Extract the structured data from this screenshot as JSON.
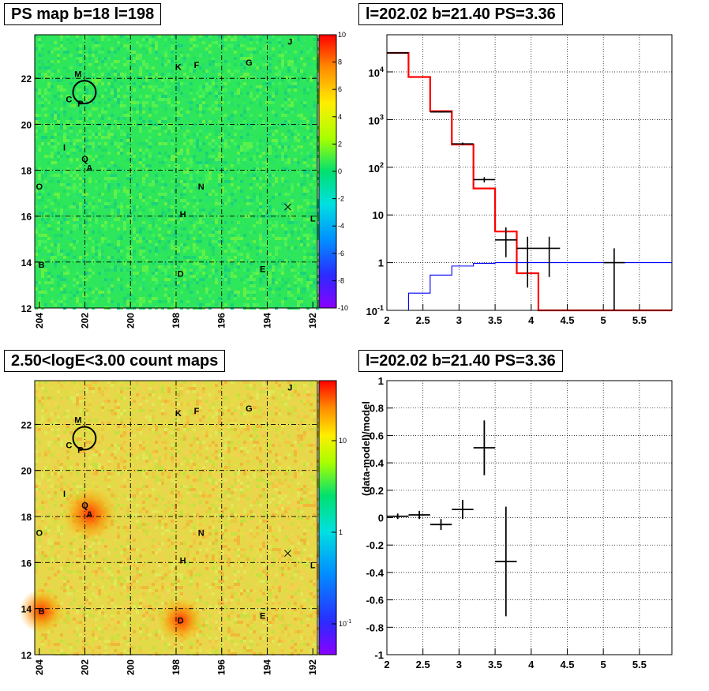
{
  "colors": {
    "map_bg": "#2ee65a",
    "count_bg": "#e6d84a",
    "red_model": "#ff0000",
    "blue_model": "#0000ff",
    "data": "#000000"
  },
  "chart_data": [
    {
      "id": "ps_map",
      "type": "heatmap",
      "title": "PS map b=18 l=198",
      "x_ticks": [
        "204",
        "202",
        "200",
        "198",
        "196",
        "194",
        "192"
      ],
      "x_tick_values": [
        204,
        202,
        200,
        198,
        196,
        194,
        192
      ],
      "xlim": [
        204.2,
        191.8
      ],
      "y_ticks": [
        "14",
        "16",
        "18",
        "20",
        "22"
      ],
      "y_tick_values": [
        14,
        16,
        18,
        20,
        22
      ],
      "ylim": [
        12,
        23.9
      ],
      "colorbar": {
        "min": -10,
        "max": 10,
        "labels": [
          "10",
          "8",
          "6",
          "4",
          "2",
          "0",
          "-2",
          "-4",
          "-6",
          "-8",
          "-10"
        ]
      },
      "sources": [
        {
          "label": "M",
          "l": 202.3,
          "b": 22.2
        },
        {
          "label": "K",
          "l": 197.9,
          "b": 22.5
        },
        {
          "label": "F",
          "l": 197.1,
          "b": 22.6
        },
        {
          "label": "G",
          "l": 194.8,
          "b": 22.7
        },
        {
          "label": "J",
          "l": 193.0,
          "b": 23.6
        },
        {
          "label": "C",
          "l": 202.7,
          "b": 21.1
        },
        {
          "label": "P",
          "l": 202.2,
          "b": 20.9
        },
        {
          "label": "I",
          "l": 202.9,
          "b": 19.0
        },
        {
          "label": "Q",
          "l": 202.0,
          "b": 18.5
        },
        {
          "label": "A",
          "l": 201.8,
          "b": 18.1
        },
        {
          "label": "O",
          "l": 204.0,
          "b": 17.3
        },
        {
          "label": "N",
          "l": 196.9,
          "b": 17.3
        },
        {
          "label": "H",
          "l": 197.7,
          "b": 16.1
        },
        {
          "label": "L",
          "l": 192.0,
          "b": 15.9
        },
        {
          "label": "B",
          "l": 203.9,
          "b": 13.9
        },
        {
          "label": "D",
          "l": 197.8,
          "b": 13.5
        },
        {
          "label": "E",
          "l": 194.2,
          "b": 13.7
        }
      ],
      "circle": {
        "l": 202.02,
        "b": 21.4,
        "r": 0.5
      },
      "cross": {
        "l": 193.1,
        "b": 16.4
      }
    },
    {
      "id": "spectrum",
      "type": "line",
      "title": "l=202.02 b=21.40 PS=3.36",
      "y_scale": "log",
      "xlim": [
        2,
        5.95
      ],
      "ylim": [
        0.1,
        60000
      ],
      "x_ticks": [
        "2",
        "2.5",
        "3",
        "3.5",
        "4",
        "4.5",
        "5",
        "5.5"
      ],
      "x_tick_values": [
        2,
        2.5,
        3,
        3.5,
        4,
        4.5,
        5,
        5.5
      ],
      "y_ticks": [
        "1",
        "10"
      ],
      "y_tick_values": [
        1,
        10
      ],
      "y_ticks_pow": [
        {
          "base": "10",
          "exp": "4",
          "value": 10000
        },
        {
          "base": "10",
          "exp": "3",
          "value": 1000
        },
        {
          "base": "10",
          "exp": "2",
          "value": 100
        },
        {
          "base": "10",
          "exp": "-1",
          "value": 0.1
        }
      ],
      "series": [
        {
          "edges": [
            2.0,
            2.3,
            2.6,
            2.9,
            3.2,
            3.5,
            3.8,
            4.1,
            4.4,
            4.7,
            5.0,
            5.3,
            5.95
          ],
          "values": [
            25000,
            7800,
            1500,
            300,
            36,
            4.5,
            0.6,
            0.1,
            0.1,
            0.1,
            0.1,
            0.1
          ]
        },
        {
          "edges": [
            2.0,
            2.3,
            2.6,
            2.9,
            3.2,
            3.5,
            3.8,
            4.1,
            4.4,
            4.7,
            5.0,
            5.3,
            5.95
          ],
          "values": [
            0.05,
            0.23,
            0.55,
            0.85,
            0.97,
            1.0,
            1.0,
            1.0,
            1.0,
            1.0,
            1.0,
            1.0
          ]
        }
      ],
      "points": [
        {
          "x": 2.15,
          "y": 25000,
          "xerr": 0.15,
          "ylo": 25000,
          "yhi": 25000
        },
        {
          "x": 2.75,
          "y": 1450,
          "xerr": 0.15,
          "ylo": 1400,
          "yhi": 1500
        },
        {
          "x": 3.05,
          "y": 310,
          "xerr": 0.15,
          "ylo": 290,
          "yhi": 330
        },
        {
          "x": 3.35,
          "y": 55,
          "xerr": 0.15,
          "ylo": 48,
          "yhi": 62
        },
        {
          "x": 3.65,
          "y": 3.0,
          "xerr": 0.15,
          "ylo": 1.3,
          "yhi": 5.5
        },
        {
          "x": 3.95,
          "y": 2.0,
          "xerr": 0.15,
          "ylo": 0.3,
          "yhi": 3.5
        },
        {
          "x": 4.25,
          "y": 2.0,
          "xerr": 0.15,
          "ylo": 0.5,
          "yhi": 3.5
        },
        {
          "x": 5.15,
          "y": 1.0,
          "xerr": 0.15,
          "ylo": 0.1,
          "yhi": 2.0
        }
      ]
    },
    {
      "id": "count_map",
      "type": "heatmap",
      "title": "2.50<logE<3.00 count maps",
      "x_ticks": [
        "204",
        "202",
        "200",
        "198",
        "196",
        "194",
        "192"
      ],
      "x_tick_values": [
        204,
        202,
        200,
        198,
        196,
        194,
        192
      ],
      "xlim": [
        204.2,
        191.8
      ],
      "y_ticks": [
        "14",
        "16",
        "18",
        "20",
        "22"
      ],
      "y_tick_values": [
        14,
        16,
        18,
        20,
        22
      ],
      "ylim": [
        12,
        23.9
      ],
      "colorbar": {
        "scale": "log",
        "labels": [
          "10",
          "1"
        ],
        "label_values": [
          10,
          1
        ],
        "label_pow": {
          "base": "10",
          "exp": "-1",
          "value": 0.1
        }
      },
      "hotspots": [
        {
          "label": "A",
          "l": 201.8,
          "b": 18.1,
          "strength": 1.0
        },
        {
          "label": "B",
          "l": 203.9,
          "b": 13.9,
          "strength": 0.8
        },
        {
          "label": "D",
          "l": 197.8,
          "b": 13.5,
          "strength": 0.8
        }
      ]
    },
    {
      "id": "residuals",
      "type": "scatter",
      "title": "l=202.02 b=21.40 PS=3.36",
      "ylabel": "(data-model)/model",
      "xlim": [
        2,
        5.95
      ],
      "ylim": [
        -1,
        1
      ],
      "x_ticks": [
        "2",
        "2.5",
        "3",
        "3.5",
        "4",
        "4.5",
        "5",
        "5.5"
      ],
      "x_tick_values": [
        2,
        2.5,
        3,
        3.5,
        4,
        4.5,
        5,
        5.5
      ],
      "y_ticks": [
        "1",
        "0.8",
        "0.6",
        "0.4",
        "0.2",
        "0",
        "-0.2",
        "-0.4",
        "-0.6",
        "-0.8",
        "-1"
      ],
      "y_tick_values": [
        1,
        0.8,
        0.6,
        0.4,
        0.2,
        0,
        -0.2,
        -0.4,
        -0.6,
        -0.8,
        -1
      ],
      "points": [
        {
          "x": 2.15,
          "y": 0.01,
          "xerr": 0.15,
          "yerr": 0.02
        },
        {
          "x": 2.45,
          "y": 0.02,
          "xerr": 0.15,
          "yerr": 0.03
        },
        {
          "x": 2.75,
          "y": -0.05,
          "xerr": 0.15,
          "yerr": 0.04
        },
        {
          "x": 3.05,
          "y": 0.06,
          "xerr": 0.15,
          "yerr": 0.07
        },
        {
          "x": 3.35,
          "y": 0.51,
          "xerr": 0.15,
          "yerr": 0.2
        },
        {
          "x": 3.65,
          "y": -0.32,
          "xerr": 0.15,
          "yerr": 0.4
        }
      ]
    }
  ]
}
